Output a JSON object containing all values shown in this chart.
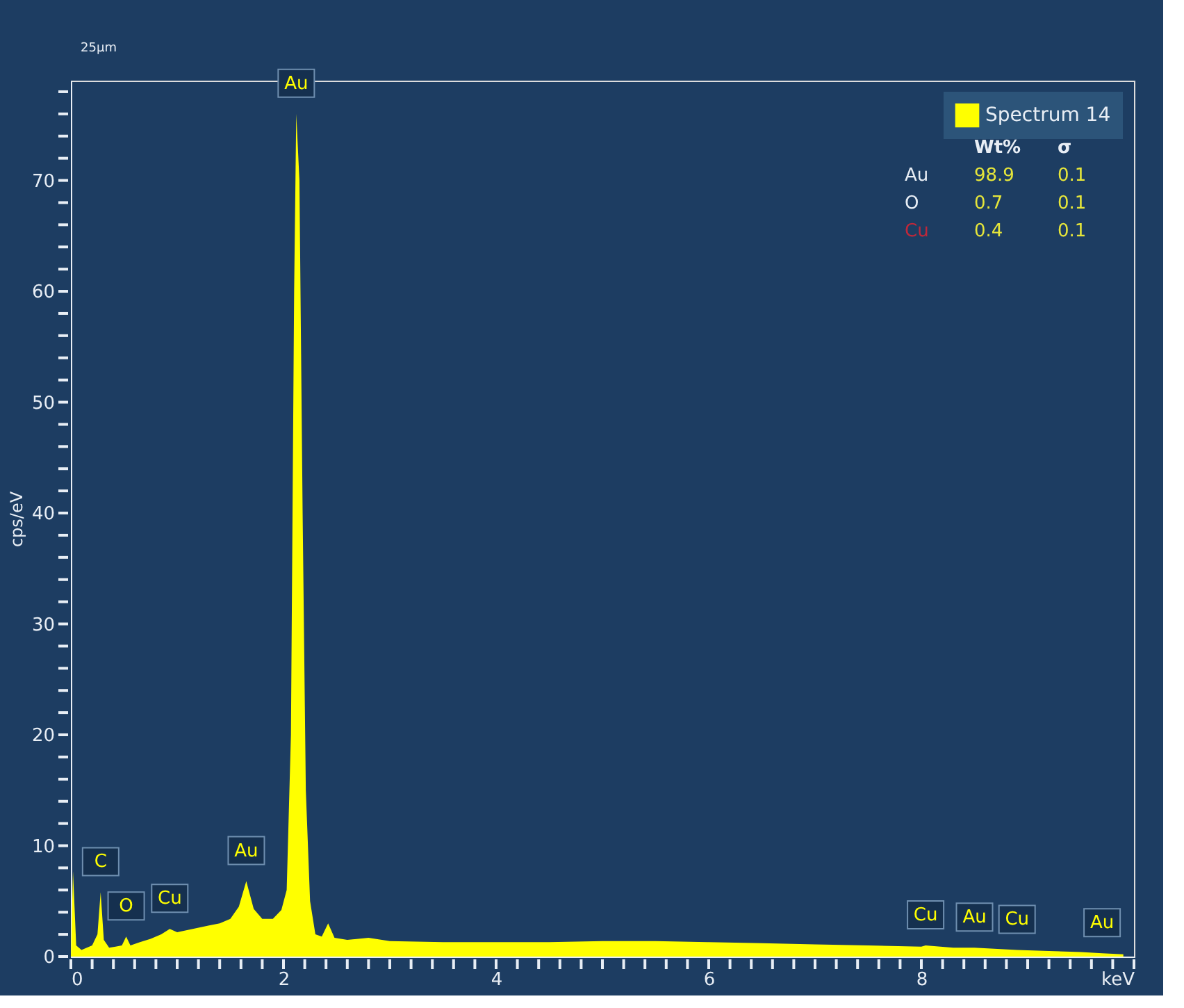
{
  "chart_data": {
    "type": "area",
    "ylabel": "cps/eV",
    "x": [
      0,
      0.02,
      0.05,
      0.1,
      0.15,
      0.2,
      0.25,
      0.28,
      0.31,
      0.36,
      0.42,
      0.48,
      0.52,
      0.56,
      0.65,
      0.75,
      0.85,
      0.93,
      1.0,
      1.1,
      1.2,
      1.3,
      1.4,
      1.5,
      1.58,
      1.65,
      1.72,
      1.8,
      1.9,
      1.98,
      2.03,
      2.07,
      2.1,
      2.12,
      2.15,
      2.18,
      2.21,
      2.25,
      2.3,
      2.36,
      2.42,
      2.48,
      2.6,
      2.8,
      3.0,
      3.5,
      4.0,
      4.5,
      5.0,
      5.5,
      6.0,
      6.5,
      7.0,
      7.5,
      8.0,
      8.04,
      8.3,
      8.5,
      8.9,
      9.2,
      9.5,
      9.7,
      9.9
    ],
    "series": [
      {
        "name": "Spectrum 14",
        "color": "#ffff00",
        "values": [
          0,
          7.7,
          1.0,
          0.6,
          0.8,
          1.0,
          2.0,
          5.8,
          1.5,
          0.8,
          0.9,
          1.0,
          1.8,
          1.0,
          1.3,
          1.6,
          2.0,
          2.5,
          2.2,
          2.4,
          2.6,
          2.8,
          3.0,
          3.4,
          4.5,
          6.8,
          4.3,
          3.4,
          3.4,
          4.2,
          6.0,
          20,
          60,
          76,
          70,
          40,
          15,
          5,
          2.0,
          1.8,
          3.0,
          1.7,
          1.5,
          1.7,
          1.4,
          1.3,
          1.3,
          1.3,
          1.4,
          1.4,
          1.3,
          1.2,
          1.1,
          1.0,
          0.9,
          1.0,
          0.8,
          0.8,
          0.6,
          0.5,
          0.4,
          0.3,
          0.2
        ]
      }
    ],
    "xlim": [
      0,
      10
    ],
    "xticks": [
      0,
      {
        "value": 0.2,
        "label": null
      },
      {
        "value": 0.4,
        "label": null
      },
      {
        "value": 0.6,
        "label": null
      },
      {
        "value": 0.8,
        "label": null
      },
      {
        "value": 1,
        "label": null
      },
      {
        "value": 1.2,
        "label": null
      },
      {
        "value": 1.4,
        "label": null
      },
      {
        "value": 1.6,
        "label": null
      },
      {
        "value": 1.8,
        "label": null
      },
      2,
      {
        "value": 2.2,
        "label": null
      },
      {
        "value": 2.4,
        "label": null
      },
      {
        "value": 2.6,
        "label": null
      },
      {
        "value": 2.8,
        "label": null
      },
      {
        "value": 3,
        "label": null
      },
      {
        "value": 3.2,
        "label": null
      },
      {
        "value": 3.4,
        "label": null
      },
      {
        "value": 3.6,
        "label": null
      },
      {
        "value": 3.8,
        "label": null
      },
      4,
      {
        "value": 4.2,
        "label": null
      },
      {
        "value": 4.4,
        "label": null
      },
      {
        "value": 4.6,
        "label": null
      },
      {
        "value": 4.8,
        "label": null
      },
      {
        "value": 5,
        "label": null
      },
      {
        "value": 5.2,
        "label": null
      },
      {
        "value": 5.4,
        "label": null
      },
      {
        "value": 5.6,
        "label": null
      },
      {
        "value": 5.8,
        "label": null
      },
      6,
      {
        "value": 6.2,
        "label": null
      },
      {
        "value": 6.4,
        "label": null
      },
      {
        "value": 6.6,
        "label": null
      },
      {
        "value": 6.8,
        "label": null
      },
      {
        "value": 7,
        "label": null
      },
      {
        "value": 7.2,
        "label": null
      },
      {
        "value": 7.4,
        "label": null
      },
      {
        "value": 7.6,
        "label": null
      },
      {
        "value": 7.8,
        "label": null
      },
      8,
      {
        "value": 8.2,
        "label": null
      },
      {
        "value": 8.4,
        "label": null
      },
      {
        "value": 8.6,
        "label": null
      },
      {
        "value": 8.8,
        "label": null
      },
      {
        "value": 9,
        "label": null
      },
      {
        "value": 9.2,
        "label": null
      },
      {
        "value": 9.4,
        "label": null
      },
      {
        "value": 9.6,
        "label": null
      },
      {
        "value": 9.8,
        "label": null
      },
      {
        "value": 10,
        "label": "keV"
      }
    ],
    "ylim": [
      0,
      79
    ],
    "yticks": [
      0,
      {
        "value": 2,
        "label": null
      },
      {
        "value": 4,
        "label": null
      },
      {
        "value": 6,
        "label": null
      },
      {
        "value": 8,
        "label": null
      },
      10,
      {
        "value": 12,
        "label": null
      },
      {
        "value": 14,
        "label": null
      },
      {
        "value": 16,
        "label": null
      },
      {
        "value": 18,
        "label": null
      },
      20,
      {
        "value": 22,
        "label": null
      },
      {
        "value": 24,
        "label": null
      },
      {
        "value": 26,
        "label": null
      },
      {
        "value": 28,
        "label": null
      },
      30,
      {
        "value": 32,
        "label": null
      },
      {
        "value": 34,
        "label": null
      },
      {
        "value": 36,
        "label": null
      },
      {
        "value": 38,
        "label": null
      },
      40,
      {
        "value": 42,
        "label": null
      },
      {
        "value": 44,
        "label": null
      },
      {
        "value": 46,
        "label": null
      },
      {
        "value": 48,
        "label": null
      },
      50,
      {
        "value": 52,
        "label": null
      },
      {
        "value": 54,
        "label": null
      },
      {
        "value": 56,
        "label": null
      },
      {
        "value": 58,
        "label": null
      },
      60,
      {
        "value": 62,
        "label": null
      },
      {
        "value": 64,
        "label": null
      },
      {
        "value": 66,
        "label": null
      },
      {
        "value": 68,
        "label": null
      },
      70,
      {
        "value": 72,
        "label": null
      },
      {
        "value": 74,
        "label": null
      },
      {
        "value": 76,
        "label": null
      },
      {
        "value": 78,
        "label": null
      }
    ],
    "grid": false,
    "legend": "top right",
    "annotations": [
      {
        "text": "C",
        "x": 0.28,
        "y": 5.8
      },
      {
        "text": "O",
        "x": 0.52,
        "y": 1.8
      },
      {
        "text": "Cu",
        "x": 0.93,
        "y": 2.5
      },
      {
        "text": "Au",
        "x": 1.65,
        "y": 6.8
      },
      {
        "text": "Au",
        "x": 2.12,
        "y": 76
      },
      {
        "text": "Cu",
        "x": 8.04,
        "y": 1.0
      },
      {
        "text": "Au",
        "x": 8.5,
        "y": 0.8
      },
      {
        "text": "Cu",
        "x": 8.9,
        "y": 0.6
      },
      {
        "text": "Au",
        "x": 9.7,
        "y": 0.3
      },
      "25μm",
      "Wt%",
      "σ",
      "Au",
      "98.9",
      "0.1",
      "O",
      "0.7",
      "0.1",
      "Cu",
      "0.4",
      "0.1"
    ]
  }
}
